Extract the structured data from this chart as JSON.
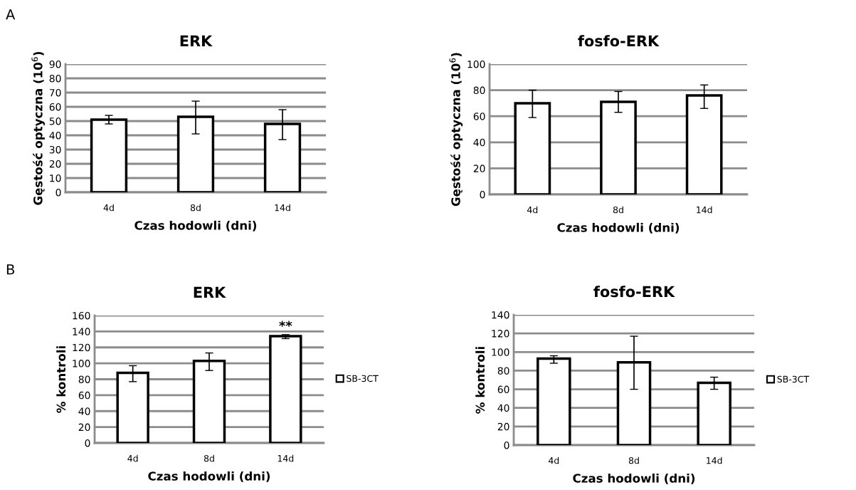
{
  "chart_data": [
    {
      "type": "bar",
      "title": "ERK",
      "xlabel": "Czas hodowli (dni)",
      "ylabel": "Gęstość optyczna (10$^{6}$)",
      "categories": [
        "4d",
        "8d",
        "14d"
      ],
      "series": [
        {
          "color": "#ffffff",
          "values": [
            51,
            53,
            48
          ],
          "errors": [
            [
              48,
              54
            ],
            [
              41,
              64
            ],
            [
              37,
              58
            ]
          ]
        }
      ],
      "ylim": [
        0,
        90
      ],
      "yticks": [
        0,
        10,
        20,
        30,
        40,
        50,
        60,
        70,
        80,
        90
      ],
      "grid": "y",
      "annotations": [
        "A"
      ]
    },
    {
      "type": "bar",
      "title": "fosfo-ERK",
      "xlabel": "Czas hodowli (dni)",
      "ylabel": "Gęstość optyczna (10$^{6}$)",
      "categories": [
        "4d",
        "8d",
        "14d"
      ],
      "series": [
        {
          "color": "#ffffff",
          "values": [
            70,
            71,
            76
          ],
          "errors": [
            [
              59,
              80
            ],
            [
              63,
              79
            ],
            [
              66,
              84
            ]
          ]
        }
      ],
      "ylim": [
        0,
        100
      ],
      "yticks": [
        0,
        20,
        40,
        60,
        80,
        100
      ],
      "grid": "y"
    },
    {
      "type": "bar",
      "title": "ERK",
      "xlabel": "Czas hodowli (dni)",
      "ylabel": "% kontroli",
      "categories": [
        "4d",
        "8d",
        "14d"
      ],
      "series": [
        {
          "name": "SB-3CT",
          "color": "#ffffff",
          "values": [
            88,
            103,
            134
          ],
          "errors": [
            [
              77,
              97
            ],
            [
              91,
              113
            ],
            [
              131,
              136
            ]
          ]
        }
      ],
      "ylim": [
        0,
        160
      ],
      "yticks": [
        0,
        20,
        40,
        60,
        80,
        100,
        120,
        140,
        160
      ],
      "grid": "y",
      "legend": "right",
      "annotations": [
        "B",
        {
          "text": "**",
          "x": "14d",
          "y": 138
        }
      ]
    },
    {
      "type": "bar",
      "title": "fosfo-ERK",
      "xlabel": "Czas hodowli (dni)",
      "ylabel": "% kontroli",
      "categories": [
        "4d",
        "8d",
        "14d"
      ],
      "series": [
        {
          "name": "SB-3CT",
          "color": "#ffffff",
          "values": [
            93,
            89,
            67
          ],
          "errors": [
            [
              88,
              96
            ],
            [
              60,
              117
            ],
            [
              60,
              73
            ]
          ]
        }
      ],
      "ylim": [
        0,
        140
      ],
      "yticks": [
        0,
        20,
        40,
        60,
        80,
        100,
        120,
        140
      ],
      "grid": "y",
      "legend": "right"
    }
  ]
}
